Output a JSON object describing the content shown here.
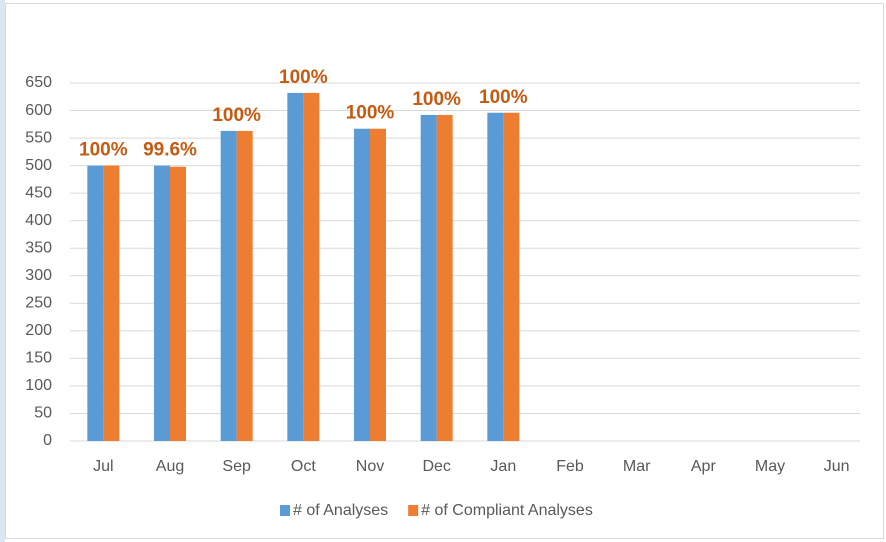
{
  "chart_data": {
    "type": "bar",
    "categories": [
      "Jul",
      "Aug",
      "Sep",
      "Oct",
      "Nov",
      "Dec",
      "Jan",
      "Feb",
      "Mar",
      "Apr",
      "May",
      "Jun"
    ],
    "series": [
      {
        "name": "# of Analyses",
        "color": "#5b9bd5",
        "values": [
          500,
          500,
          563,
          632,
          567,
          592,
          596,
          null,
          null,
          null,
          null,
          null
        ]
      },
      {
        "name": "# of Compliant Analyses",
        "color": "#ed7d31",
        "values": [
          500,
          498,
          563,
          632,
          567,
          592,
          596,
          null,
          null,
          null,
          null,
          null
        ]
      }
    ],
    "annotations": [
      "100%",
      "99.6%",
      "100%",
      "100%",
      "100%",
      "100%",
      "100%"
    ],
    "annotation_color": "#c55a11",
    "ylim": [
      0,
      650
    ],
    "yticks": [
      0,
      50,
      100,
      150,
      200,
      250,
      300,
      350,
      400,
      450,
      500,
      550,
      600,
      650
    ],
    "grid": true,
    "legend": "bottom"
  }
}
